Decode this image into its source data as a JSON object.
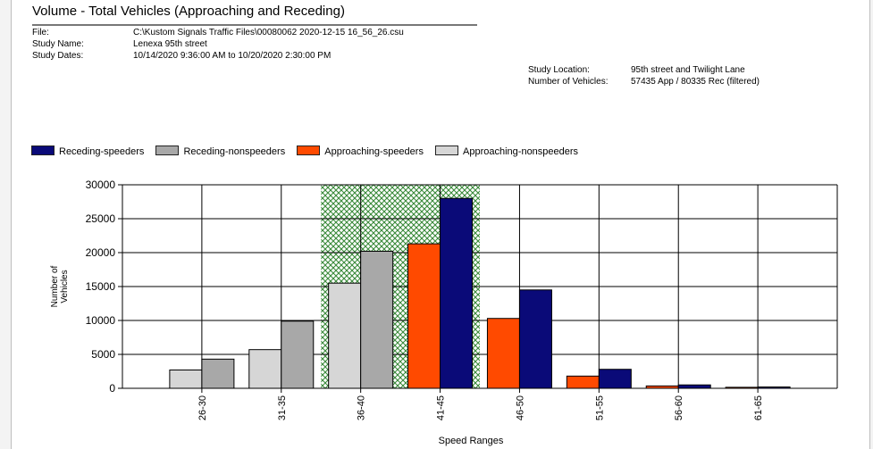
{
  "header": {
    "title": "Volume - Total Vehicles (Approaching and Receding)",
    "file_label": "File:",
    "file_value": "C:\\Kustom Signals Traffic Files\\00080062 2020-12-15 16_56_26.csu",
    "study_name_label": "Study Name:",
    "study_name_value": "Lenexa 95th street",
    "study_dates_label": "Study Dates:",
    "study_dates_value": "10/14/2020 9:36:00 AM to 10/20/2020 2:30:00 PM",
    "location_label": "Study Location:",
    "location_value": "95th street and Twilight Lane",
    "vehicles_label": "Number of Vehicles:",
    "vehicles_value": "57435 App / 80335 Rec (filtered)"
  },
  "colors": {
    "receding_speeders": "#0a0a78",
    "receding_nonspeeders": "#a8a8a8",
    "approaching_speeders": "#ff4a00",
    "approaching_nonspeeders": "#d6d6d6",
    "pace_band": "#3a8a3a"
  },
  "chart_data": {
    "type": "bar",
    "title": "Volume - Total Vehicles (Approaching and Receding)",
    "xlabel": "Speed Ranges",
    "ylabel": "Number of Vehicles",
    "categories": [
      "26-30",
      "31-35",
      "36-40",
      "41-45",
      "46-50",
      "51-55",
      "56-60",
      "61-65"
    ],
    "ylim": [
      0,
      30000
    ],
    "yticks": [
      0,
      5000,
      10000,
      15000,
      20000,
      25000,
      30000
    ],
    "grid": true,
    "legend_position": "top",
    "highlight_band_categories": [
      "36-40",
      "41-45"
    ],
    "series": [
      {
        "name": "Receding-speeders",
        "values": [
          0,
          0,
          0,
          28000,
          14500,
          2800,
          500,
          200
        ]
      },
      {
        "name": "Receding-nonspeeders",
        "values": [
          4300,
          9900,
          20200,
          0,
          0,
          0,
          0,
          0
        ]
      },
      {
        "name": "Approaching-speeders",
        "values": [
          0,
          0,
          0,
          21300,
          10300,
          1800,
          350,
          150
        ]
      },
      {
        "name": "Approaching-nonspeeders",
        "values": [
          2700,
          5700,
          15500,
          0,
          0,
          0,
          0,
          0
        ]
      }
    ]
  }
}
